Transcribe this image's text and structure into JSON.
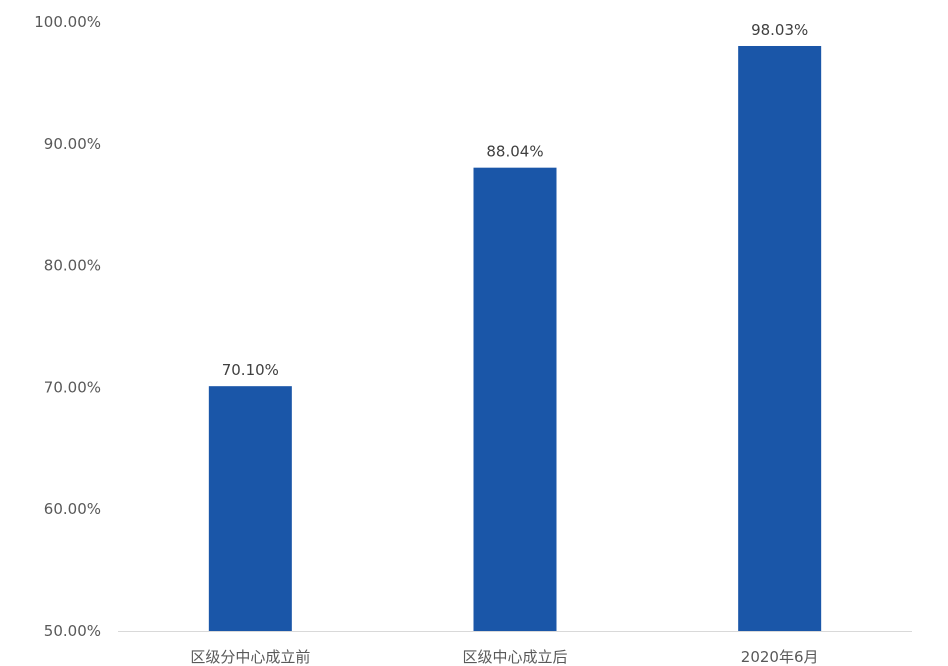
{
  "chart_data": {
    "type": "bar",
    "categories": [
      "区级分中心成立前",
      "区级中心成立后",
      "2020年6月"
    ],
    "values": [
      70.1,
      88.04,
      98.03
    ],
    "data_labels": [
      "70.10%",
      "88.04%",
      "98.03%"
    ],
    "ylim": [
      50,
      100
    ],
    "y_ticks": [
      50,
      60,
      70,
      80,
      90,
      100
    ],
    "y_tick_labels": [
      "50.00%",
      "60.00%",
      "70.00%",
      "80.00%",
      "90.00%",
      "100.00%"
    ],
    "title": "",
    "xlabel": "",
    "ylabel": "",
    "grid": false,
    "legend": "none",
    "bar_color": "#1A56A8",
    "axis_color": "#D9D9D9"
  }
}
